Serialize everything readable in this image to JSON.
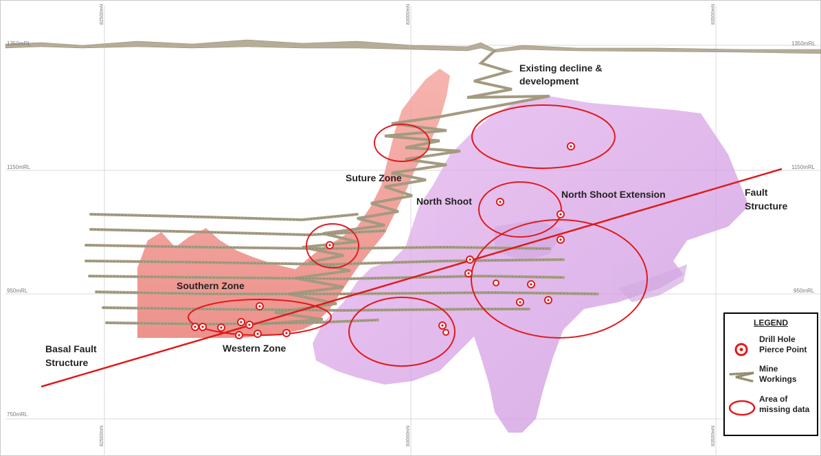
{
  "colors": {
    "drill_hole": "#e0191b",
    "missing_data_ring": "#e0191b",
    "fault_line": "#e0191b",
    "orebody_southern": "#f08a86",
    "orebody_north": "#d9a6e6",
    "mine_workings": "#a39a80",
    "grid": "#d6d6d6"
  },
  "grid": {
    "rl_labels": [
      "1350mRL",
      "1150mRL",
      "950mRL",
      "750mRL"
    ],
    "rl_labels_right": [
      "1350mRL",
      "1150mRL",
      "950mRL"
    ],
    "northing_labels_top": [
      "82500mN",
      "83000mN",
      "83500mN"
    ],
    "northing_labels_bottom": [
      "82500mN",
      "83000mN",
      "83500mN"
    ]
  },
  "annotations": {
    "existing_decline": "Existing decline &\ndevelopment",
    "suture_zone": "Suture Zone",
    "north_shoot": "North Shoot",
    "north_shoot_extension": "North Shoot Extension",
    "fault_structure": "Fault\nStructure",
    "southern_zone": "Southern Zone",
    "western_zone": "Western Zone",
    "basal_fault_structure": "Basal Fault\nStructure"
  },
  "legend": {
    "title": "LEGEND",
    "items": [
      {
        "icon": "drill-hole-pierce-point-icon",
        "label": "Drill Hole\nPierce Point"
      },
      {
        "icon": "mine-workings-icon",
        "label": "Mine\nWorkings"
      },
      {
        "icon": "missing-data-ellipse-icon",
        "label": "Area of\nmissing data"
      }
    ]
  }
}
